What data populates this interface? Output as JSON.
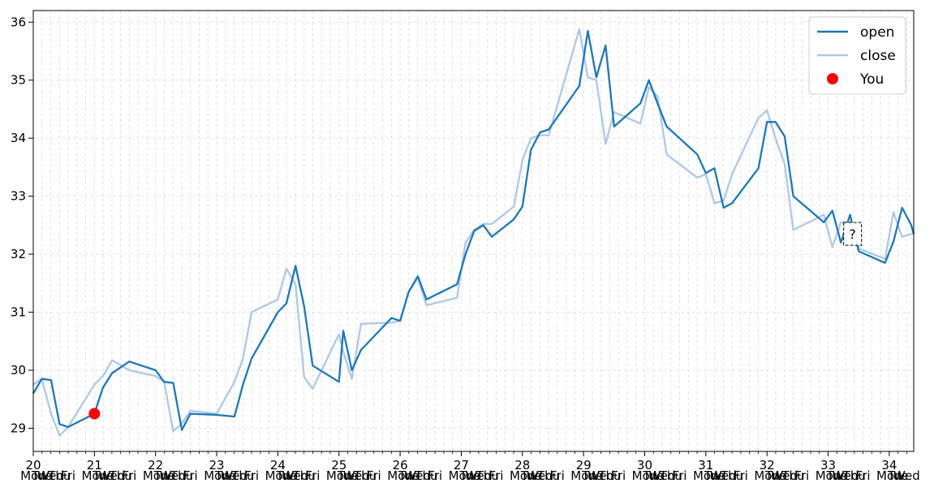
{
  "chart_data": {
    "type": "line",
    "title": "",
    "xlabel": "",
    "ylabel": "",
    "xlim": [
      20,
      34.4
    ],
    "ylim": [
      28.6,
      36.2
    ],
    "grid": true,
    "legend_position": "top-right",
    "x_major_ticks": [
      "20",
      "21",
      "22",
      "23",
      "24",
      "25",
      "26",
      "27",
      "28",
      "29",
      "30",
      "31",
      "32",
      "33",
      "34"
    ],
    "y_ticks": [
      29,
      30,
      31,
      32,
      33,
      34,
      35,
      36
    ],
    "weekday_labels": [
      "Mon",
      "Tue",
      "Wed",
      "Thu",
      "Fri"
    ],
    "series": [
      {
        "name": "open",
        "color": "#1f77b4",
        "x": [
          20.0,
          20.14,
          20.29,
          20.43,
          20.57,
          21.0,
          21.14,
          21.29,
          21.57,
          22.0,
          22.14,
          22.29,
          22.43,
          22.57,
          23.0,
          23.29,
          23.43,
          23.57,
          24.0,
          24.14,
          24.29,
          24.43,
          24.57,
          25.0,
          25.07,
          25.21,
          25.36,
          25.86,
          26.0,
          26.14,
          26.29,
          26.43,
          26.93,
          27.07,
          27.21,
          27.36,
          27.5,
          27.86,
          28.0,
          28.14,
          28.29,
          28.43,
          28.93,
          29.07,
          29.21,
          29.36,
          29.5,
          29.93,
          30.07,
          30.21,
          30.36,
          30.86,
          31.0,
          31.14,
          31.29,
          31.43,
          31.86,
          32.0,
          32.14,
          32.29,
          32.43,
          32.93,
          33.07,
          33.21,
          33.36,
          33.5,
          33.93,
          34.07,
          34.21,
          34.36,
          34.4
        ],
        "values": [
          29.6,
          29.85,
          29.83,
          29.07,
          29.02,
          29.25,
          29.7,
          29.95,
          30.15,
          30.0,
          29.8,
          29.78,
          28.97,
          29.25,
          29.23,
          29.2,
          29.75,
          30.2,
          31.0,
          31.15,
          31.8,
          31.1,
          30.08,
          29.8,
          30.68,
          30.0,
          30.35,
          30.9,
          30.85,
          31.35,
          31.62,
          31.22,
          31.48,
          32.0,
          32.4,
          32.5,
          32.3,
          32.6,
          32.82,
          33.8,
          34.1,
          34.15,
          34.9,
          35.85,
          35.05,
          35.6,
          34.2,
          34.6,
          35.0,
          34.6,
          34.2,
          33.72,
          33.4,
          33.48,
          32.8,
          32.88,
          33.48,
          34.28,
          34.28,
          34.03,
          33.0,
          32.55,
          32.75,
          32.2,
          32.68,
          32.05,
          31.85,
          32.22,
          32.8,
          32.5,
          32.35
        ]
      },
      {
        "name": "close",
        "color": "#aec7e8",
        "x": [
          20.0,
          20.14,
          20.29,
          20.43,
          20.57,
          21.0,
          21.14,
          21.29,
          21.57,
          22.0,
          22.14,
          22.29,
          22.43,
          22.57,
          23.0,
          23.29,
          23.43,
          23.57,
          24.0,
          24.14,
          24.29,
          24.43,
          24.57,
          25.0,
          25.07,
          25.21,
          25.36,
          25.86,
          26.0,
          26.14,
          26.29,
          26.43,
          26.93,
          27.07,
          27.21,
          27.36,
          27.5,
          27.86,
          28.0,
          28.14,
          28.29,
          28.43,
          28.93,
          29.07,
          29.21,
          29.36,
          29.5,
          29.93,
          30.07,
          30.21,
          30.36,
          30.86,
          31.0,
          31.14,
          31.29,
          31.43,
          31.86,
          32.0,
          32.14,
          32.29,
          32.43,
          32.93,
          33.07,
          33.21,
          33.36,
          33.5,
          33.93,
          34.07,
          34.21,
          34.36,
          34.4
        ],
        "values": [
          29.75,
          29.85,
          29.25,
          28.87,
          29.02,
          29.75,
          29.9,
          30.17,
          30.0,
          29.9,
          29.8,
          28.95,
          29.08,
          29.3,
          29.25,
          29.8,
          30.2,
          31.0,
          31.22,
          31.75,
          31.48,
          29.88,
          29.68,
          30.62,
          30.32,
          29.85,
          30.8,
          30.82,
          30.85,
          31.35,
          31.58,
          31.12,
          31.25,
          32.2,
          32.42,
          32.52,
          32.52,
          32.82,
          33.62,
          34.0,
          34.05,
          34.05,
          35.88,
          35.05,
          35.0,
          33.9,
          34.45,
          34.25,
          34.88,
          34.72,
          33.72,
          33.32,
          33.38,
          32.88,
          32.92,
          33.38,
          34.35,
          34.48,
          34.0,
          33.55,
          32.42,
          32.68,
          32.12,
          32.55,
          32.55,
          32.1,
          31.92,
          32.72,
          32.3,
          32.35,
          32.35
        ]
      }
    ],
    "markers": [
      {
        "name": "You",
        "x": 21.0,
        "y": 29.25,
        "color": "#ff0000"
      }
    ],
    "annotations": [
      {
        "text": "?",
        "x": 33.4,
        "y": 32.35
      }
    ]
  }
}
